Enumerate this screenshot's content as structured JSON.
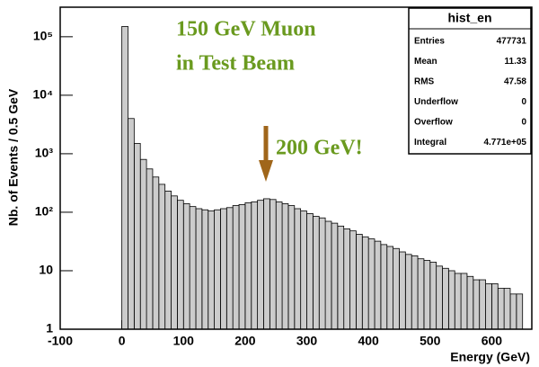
{
  "chart_data": {
    "type": "histogram",
    "x_label": "Energy (GeV)",
    "y_label": "Nb. of Events / 0.5 GeV",
    "annotations": [
      "150 GeV Muon",
      "in Test Beam",
      "200 GeV!"
    ],
    "bins": [
      0,
      10,
      20,
      30,
      40,
      50,
      60,
      70,
      80,
      90,
      100,
      110,
      120,
      130,
      140,
      150,
      160,
      170,
      180,
      190,
      200,
      210,
      220,
      230,
      240,
      250,
      260,
      270,
      280,
      290,
      300,
      310,
      320,
      330,
      340,
      350,
      360,
      370,
      380,
      390,
      400,
      410,
      420,
      430,
      440,
      450,
      460,
      470,
      480,
      490,
      500,
      510,
      520,
      530,
      540,
      550,
      560,
      570,
      580,
      590,
      600,
      610,
      620,
      630,
      640,
      650
    ],
    "values": [
      150000,
      4000,
      1500,
      800,
      550,
      400,
      300,
      230,
      190,
      160,
      140,
      125,
      115,
      110,
      105,
      110,
      115,
      120,
      130,
      135,
      145,
      150,
      160,
      170,
      165,
      150,
      140,
      130,
      115,
      105,
      95,
      85,
      80,
      70,
      65,
      58,
      52,
      48,
      42,
      38,
      35,
      32,
      28,
      26,
      24,
      21,
      19,
      18,
      16,
      15,
      14,
      12,
      11,
      10,
      9,
      9,
      8,
      7,
      7,
      6,
      6,
      5,
      5,
      4,
      4
    ],
    "color": "#cccccc",
    "xlim": [
      -100,
      665
    ],
    "xticks": [
      -100,
      0,
      100,
      200,
      300,
      400,
      500,
      600
    ],
    "ylim": [
      1,
      320000
    ],
    "log_y": true,
    "yticks": [
      1,
      10,
      {
        "value": 100,
        "label": "10²"
      },
      {
        "value": 1000,
        "label": "10³"
      },
      {
        "value": 10000,
        "label": "10⁴"
      },
      {
        "value": 100000,
        "label": "10⁵"
      }
    ],
    "stats": {
      "title": "hist_en",
      "rows": [
        [
          "Entries",
          "477731"
        ],
        [
          "Mean",
          "11.33"
        ],
        [
          "RMS",
          "47.58"
        ],
        [
          "Underflow",
          "0"
        ],
        [
          "Overflow",
          "0"
        ],
        [
          "Integral",
          "4.771e+05"
        ]
      ]
    }
  }
}
